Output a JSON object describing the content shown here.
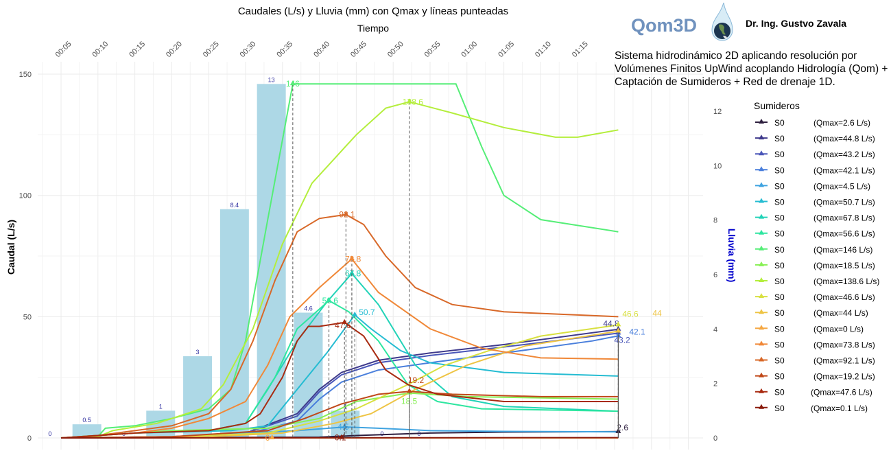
{
  "header": {
    "logo_text": "Qom3D",
    "author": "Dr. Ing. Gustvo Zavala",
    "description_lines": [
      "Sistema hidrodinámico 2D aplicando resolución por",
      "Volúmenes Finitos UpWind acoplando Hidrología (Qom) +",
      "Captación de Sumideros + Red de drenaje 1D."
    ],
    "logo_icon": "water-drop-globe-icon",
    "logo_color": "#7092be"
  },
  "chart_data": {
    "type": "line",
    "title": "Caudales (L/s) y Lluvia (mm) con Qmax y líneas punteadas",
    "xlabel": "Tiempo",
    "ylabel": "Caudal (L/s)",
    "y2label": "Lluvia (mm)",
    "x_ticks": [
      "00:05",
      "00:10",
      "00:15",
      "00:20",
      "00:25",
      "00:30",
      "00:35",
      "00:40",
      "00:45",
      "00:50",
      "00:55",
      "01:00",
      "01:05",
      "01:10",
      "01:15"
    ],
    "y_ticks": [
      0,
      50,
      100,
      150
    ],
    "y2_ticks": [
      0,
      2,
      4,
      6,
      8,
      10,
      12
    ],
    "ylim": [
      0,
      155
    ],
    "y2lim": [
      0,
      12.4
    ],
    "xlim": [
      "00:02:00",
      "01:32:00"
    ],
    "x_axis_position": "top",
    "grid": true,
    "legend_title": "Sumideros",
    "legend_position": "right",
    "rain_bar_color": "#add8e6",
    "rain_label_color": "#3030a0",
    "y2label_color": "#0000cc",
    "rain": [
      {
        "t": "00:03:30",
        "v": 0
      },
      {
        "t": "00:08:30",
        "v": 0.5
      },
      {
        "t": "00:13:30",
        "v": 0
      },
      {
        "t": "00:18:30",
        "v": 1
      },
      {
        "t": "00:23:30",
        "v": 3
      },
      {
        "t": "00:28:30",
        "v": 8.4
      },
      {
        "t": "00:33:30",
        "v": 13
      },
      {
        "t": "00:38:30",
        "v": 4.6
      },
      {
        "t": "00:43:30",
        "v": 1
      },
      {
        "t": "00:48:30",
        "v": 0
      },
      {
        "t": "00:53:30",
        "v": 0
      }
    ],
    "series": [
      {
        "name": "S0",
        "legend": "(Qmax=2.6 L/s)",
        "qmax": 2.6,
        "qmax_label": "2.6",
        "peak_t": "01:20:30",
        "color": "#2d1e3e",
        "points": [
          [
            "00:05",
            0
          ],
          [
            "00:40",
            0.3
          ],
          [
            "00:45",
            1
          ],
          [
            "00:55",
            2
          ],
          [
            "01:05",
            2.4
          ],
          [
            "01:20:30",
            2.6
          ]
        ]
      },
      {
        "name": "S0",
        "legend": "(Qmax=44.8 L/s)",
        "qmax": 44.8,
        "qmax_label": "44.8",
        "peak_t": "01:20:30",
        "color": "#3f3a8c",
        "points": [
          [
            "00:05",
            0
          ],
          [
            "00:20",
            0.5
          ],
          [
            "00:30",
            2
          ],
          [
            "00:37",
            10
          ],
          [
            "00:40",
            20
          ],
          [
            "00:43",
            27
          ],
          [
            "00:48",
            32
          ],
          [
            "00:55",
            35
          ],
          [
            "01:05",
            38.5
          ],
          [
            "01:20:30",
            44.8
          ]
        ]
      },
      {
        "name": "S0",
        "legend": "(Qmax=43.2 L/s)",
        "qmax": 43.2,
        "qmax_label": "43.2",
        "peak_t": "01:20:30",
        "color": "#4a56b8",
        "points": [
          [
            "00:05",
            0
          ],
          [
            "00:20",
            0.5
          ],
          [
            "00:30",
            2
          ],
          [
            "00:37",
            9
          ],
          [
            "00:40",
            19
          ],
          [
            "00:43",
            26
          ],
          [
            "00:48",
            31
          ],
          [
            "00:55",
            34
          ],
          [
            "01:05",
            37.5
          ],
          [
            "01:20:30",
            43.2
          ]
        ]
      },
      {
        "name": "S0",
        "legend": "(Qmax=42.1 L/s)",
        "qmax": 42.1,
        "qmax_label": "42.1",
        "peak_t": "01:20:30",
        "color": "#4a7fdc",
        "points": [
          [
            "00:05",
            0
          ],
          [
            "00:20",
            0.5
          ],
          [
            "00:30",
            1.5
          ],
          [
            "00:37",
            7
          ],
          [
            "00:40",
            16
          ],
          [
            "00:43",
            23
          ],
          [
            "00:48",
            28
          ],
          [
            "00:55",
            31
          ],
          [
            "01:05",
            35
          ],
          [
            "01:17",
            40
          ],
          [
            "01:20:30",
            42.1
          ]
        ]
      },
      {
        "name": "S0",
        "legend": "(Qmax=4.5 L/s)",
        "qmax": 4.5,
        "qmax_label": "4.5",
        "peak_t": "00:43:24",
        "color": "#3fa3e0",
        "points": [
          [
            "00:05",
            0
          ],
          [
            "00:25",
            0.5
          ],
          [
            "00:30",
            2
          ],
          [
            "00:37",
            3
          ],
          [
            "00:43:24",
            4.5
          ],
          [
            "00:48",
            4
          ],
          [
            "00:55",
            3
          ],
          [
            "01:05",
            2.7
          ],
          [
            "01:20:30",
            2.5
          ]
        ]
      },
      {
        "name": "S0",
        "legend": "(Qmax=50.7 L/s)",
        "qmax": 50.7,
        "qmax_label": "50.7",
        "peak_t": "00:44:48",
        "color": "#25bcd2",
        "points": [
          [
            "00:05",
            0
          ],
          [
            "00:15",
            2
          ],
          [
            "00:28",
            3
          ],
          [
            "00:33",
            5
          ],
          [
            "00:37",
            20
          ],
          [
            "00:41",
            35
          ],
          [
            "00:44:48",
            50.7
          ],
          [
            "00:47",
            45
          ],
          [
            "00:51",
            36
          ],
          [
            "00:55",
            31
          ],
          [
            "01:05",
            27
          ],
          [
            "01:20:30",
            25.5
          ]
        ]
      },
      {
        "name": "S0",
        "legend": "(Qmax=67.8 L/s)",
        "qmax": 67.8,
        "qmax_label": "67.8",
        "peak_t": "00:44:24",
        "color": "#22d3b8",
        "points": [
          [
            "00:05",
            0
          ],
          [
            "00:15",
            2
          ],
          [
            "00:25",
            3
          ],
          [
            "00:30",
            6
          ],
          [
            "00:33",
            20
          ],
          [
            "00:37",
            40
          ],
          [
            "00:41",
            56
          ],
          [
            "00:44:24",
            67.8
          ],
          [
            "00:48",
            55
          ],
          [
            "00:53",
            30
          ],
          [
            "00:58",
            17
          ],
          [
            "01:05",
            13
          ],
          [
            "01:20:30",
            11
          ]
        ]
      },
      {
        "name": "S0",
        "legend": "(Qmax=56.6 L/s)",
        "qmax": 56.6,
        "qmax_label": "56.6",
        "peak_t": "00:41:18",
        "color": "#2ee6a0",
        "points": [
          [
            "00:05",
            0
          ],
          [
            "00:15",
            2
          ],
          [
            "00:25",
            3
          ],
          [
            "00:30",
            6
          ],
          [
            "00:34",
            25
          ],
          [
            "00:37",
            45
          ],
          [
            "00:41:18",
            56.6
          ],
          [
            "00:44",
            52
          ],
          [
            "00:48",
            40
          ],
          [
            "00:52",
            22
          ],
          [
            "00:56",
            15
          ],
          [
            "01:02",
            12
          ],
          [
            "01:20:30",
            11
          ]
        ]
      },
      {
        "name": "S0",
        "legend": "(Qmax=146 L/s)",
        "qmax": 146,
        "qmax_label": "146",
        "peak_t": "00:36:24",
        "color": "#55ee77",
        "points": [
          [
            "00:05",
            0
          ],
          [
            "00:10",
            0.5
          ],
          [
            "00:11",
            4
          ],
          [
            "00:15",
            5
          ],
          [
            "00:20",
            8
          ],
          [
            "00:25",
            12
          ],
          [
            "00:28",
            20
          ],
          [
            "00:30",
            40
          ],
          [
            "00:33",
            90
          ],
          [
            "00:36:24",
            146
          ],
          [
            "00:58:30",
            146
          ],
          [
            "01:02",
            120
          ],
          [
            "01:05",
            100
          ],
          [
            "01:10",
            90
          ],
          [
            "01:20:30",
            85
          ]
        ]
      },
      {
        "name": "S0",
        "legend": "(Qmax=18.5 L/s)",
        "qmax": 18.5,
        "qmax_label": "18.5",
        "peak_t": "00:52:12",
        "color": "#88f055",
        "points": [
          [
            "00:05",
            0
          ],
          [
            "00:20",
            3
          ],
          [
            "00:33",
            4
          ],
          [
            "00:40",
            8
          ],
          [
            "00:45",
            15
          ],
          [
            "00:52:12",
            18.5
          ],
          [
            "01:00",
            17
          ],
          [
            "01:20:30",
            16
          ]
        ]
      },
      {
        "name": "S0",
        "legend": "(Qmax=138.6 L/s)",
        "qmax": 138.6,
        "qmax_label": "138.6",
        "peak_t": "00:52:12",
        "color": "#b4ee3c",
        "points": [
          [
            "00:05",
            0
          ],
          [
            "00:10",
            0.5
          ],
          [
            "00:12",
            3
          ],
          [
            "00:18",
            6
          ],
          [
            "00:24",
            12
          ],
          [
            "00:27",
            22
          ],
          [
            "00:31",
            45
          ],
          [
            "00:35",
            80
          ],
          [
            "00:39",
            105
          ],
          [
            "00:45",
            125
          ],
          [
            "00:49",
            136
          ],
          [
            "00:52:12",
            138.6
          ],
          [
            "00:58",
            134
          ],
          [
            "01:05",
            128
          ],
          [
            "01:12",
            124
          ],
          [
            "01:15",
            124
          ],
          [
            "01:20:30",
            127
          ]
        ]
      },
      {
        "name": "S0",
        "legend": "(Qmax=46.6 L/s)",
        "qmax": 46.6,
        "qmax_label": "46.6",
        "peak_t": "01:20:30",
        "color": "#d8e040",
        "points": [
          [
            "00:05",
            0
          ],
          [
            "00:20",
            0.5
          ],
          [
            "00:33",
            2
          ],
          [
            "00:40",
            7
          ],
          [
            "00:45",
            12
          ],
          [
            "00:52",
            22
          ],
          [
            "00:57",
            30
          ],
          [
            "01:03",
            36
          ],
          [
            "01:10",
            42
          ],
          [
            "01:20:30",
            46.6
          ]
        ]
      },
      {
        "name": "S0",
        "legend": "(Qmax=44 L/s)",
        "qmax": 44,
        "qmax_label": "44",
        "peak_t": "01:20:30",
        "color": "#eec444",
        "points": [
          [
            "00:05",
            0
          ],
          [
            "00:25",
            0.5
          ],
          [
            "00:35",
            2
          ],
          [
            "00:42",
            6
          ],
          [
            "00:47",
            10
          ],
          [
            "00:53",
            20
          ],
          [
            "01:00",
            30
          ],
          [
            "01:08",
            38
          ],
          [
            "01:20:30",
            44
          ]
        ]
      },
      {
        "name": "S0",
        "legend": "(Qmax=0 L/s)",
        "qmax": 0,
        "qmax_label": "0",
        "peak_t": "00:33:36",
        "color": "#f5a742",
        "points": [
          [
            "00:05",
            0
          ],
          [
            "01:20:30",
            0
          ]
        ]
      },
      {
        "name": "S0",
        "legend": "(Qmax=73.8 L/s)",
        "qmax": 73.8,
        "qmax_label": "73.8",
        "peak_t": "00:44:24",
        "color": "#f08838",
        "points": [
          [
            "00:05",
            0
          ],
          [
            "00:15",
            2
          ],
          [
            "00:20",
            4
          ],
          [
            "00:25",
            8
          ],
          [
            "00:30",
            15
          ],
          [
            "00:33",
            30
          ],
          [
            "00:36",
            50
          ],
          [
            "00:40",
            62
          ],
          [
            "00:44:24",
            73.8
          ],
          [
            "00:48",
            60
          ],
          [
            "00:55",
            45
          ],
          [
            "01:02",
            37
          ],
          [
            "01:10",
            33
          ],
          [
            "01:20:30",
            32.5
          ]
        ]
      },
      {
        "name": "S0",
        "legend": "(Qmax=92.1 L/s)",
        "qmax": 92.1,
        "qmax_label": "92.1",
        "peak_t": "00:43:36",
        "color": "#d86828",
        "points": [
          [
            "00:05",
            0
          ],
          [
            "00:10",
            1
          ],
          [
            "00:15",
            3
          ],
          [
            "00:20",
            5
          ],
          [
            "00:25",
            10
          ],
          [
            "00:28",
            20
          ],
          [
            "00:31",
            40
          ],
          [
            "00:34",
            65
          ],
          [
            "00:37",
            85
          ],
          [
            "00:40",
            90.5
          ],
          [
            "00:43:36",
            92.1
          ],
          [
            "00:46",
            88
          ],
          [
            "00:49",
            75
          ],
          [
            "00:53",
            62
          ],
          [
            "00:58",
            55
          ],
          [
            "01:05",
            52
          ],
          [
            "01:20:30",
            50
          ]
        ]
      },
      {
        "name": "S0",
        "legend": "(Qmax=19.2 L/s)",
        "qmax": 19.2,
        "qmax_label": "19.2",
        "peak_t": "00:52:12",
        "color": "#c04818",
        "points": [
          [
            "00:05",
            0
          ],
          [
            "00:20",
            0.5
          ],
          [
            "00:33",
            3
          ],
          [
            "00:38",
            8
          ],
          [
            "00:43",
            14
          ],
          [
            "00:48",
            18
          ],
          [
            "00:52:12",
            19.2
          ],
          [
            "00:58",
            18
          ],
          [
            "01:10",
            17
          ],
          [
            "01:20:30",
            17
          ]
        ]
      },
      {
        "name": "S0",
        "legend": "(Qmax=47.6 L/s)",
        "qmax": 47.6,
        "qmax_label": "47.6",
        "peak_t": "00:43:24",
        "color": "#a82a10",
        "points": [
          [
            "00:05",
            0
          ],
          [
            "00:10",
            1
          ],
          [
            "00:15",
            2
          ],
          [
            "00:25",
            3
          ],
          [
            "00:30",
            6
          ],
          [
            "00:32",
            10
          ],
          [
            "00:35",
            25
          ],
          [
            "00:37",
            40
          ],
          [
            "00:38:30",
            46
          ],
          [
            "00:40",
            46
          ],
          [
            "00:43:24",
            47.6
          ],
          [
            "00:46",
            42
          ],
          [
            "00:49",
            28
          ],
          [
            "00:52",
            22
          ],
          [
            "00:56",
            18
          ],
          [
            "01:05",
            15
          ],
          [
            "01:20:30",
            15
          ]
        ]
      },
      {
        "name": "S0",
        "legend": "(Qmax=0.1 L/s)",
        "qmax": 0.1,
        "qmax_label": "0.1",
        "peak_t": "00:43:00",
        "color": "#8a1a0a",
        "points": [
          [
            "00:05",
            0
          ],
          [
            "01:20:30",
            0.1
          ]
        ]
      }
    ]
  }
}
